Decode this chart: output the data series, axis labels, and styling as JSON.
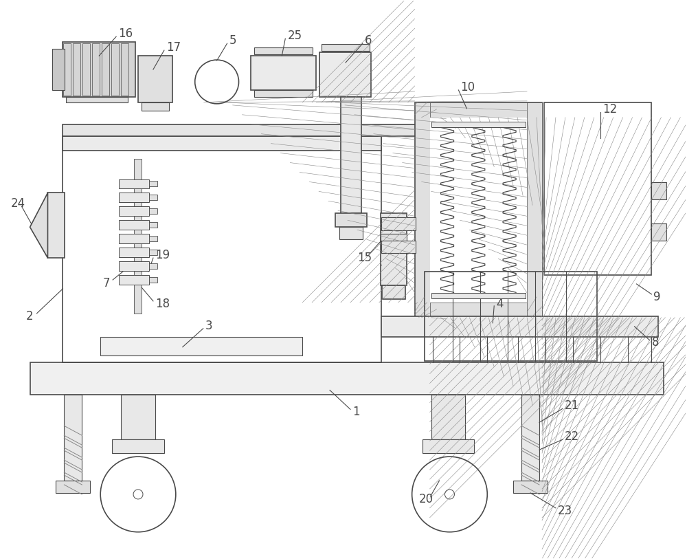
{
  "bg_color": "#ffffff",
  "line_color": "#4a4a4a",
  "lw": 1.2,
  "tlw": 0.8,
  "fig_width": 10.0,
  "fig_height": 8.13
}
